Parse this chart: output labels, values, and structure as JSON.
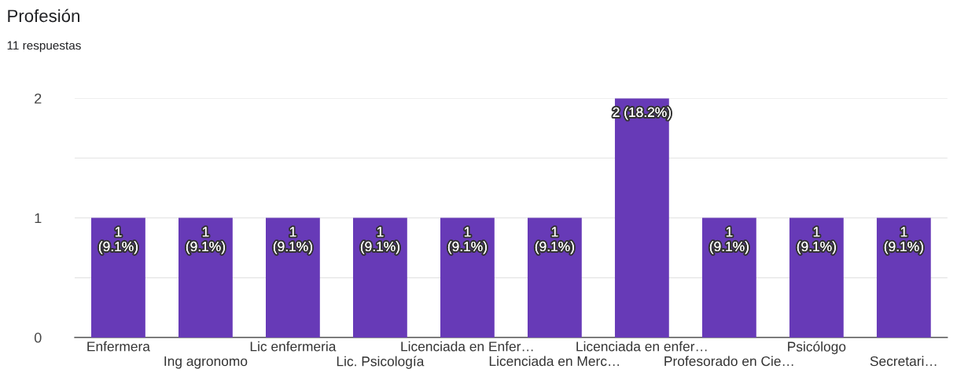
{
  "chart_data": {
    "type": "bar",
    "title": "Profesión",
    "subtitle": "11 respuestas",
    "categories": [
      "Enfermera",
      "Ing agronomo",
      "Lic enfermeria",
      "Lic. Psicología",
      "Licenciada en Enfer…",
      "Licenciada en Merc…",
      "Licenciada en enfer…",
      "Profesorado en Cie…",
      "Psicólogo",
      "Secretari…"
    ],
    "values": [
      1,
      1,
      1,
      1,
      1,
      1,
      2,
      1,
      1,
      1
    ],
    "value_labels": [
      "1\n(9.1%)",
      "1\n(9.1%)",
      "1\n(9.1%)",
      "1\n(9.1%)",
      "1\n(9.1%)",
      "1\n(9.1%)",
      "2 (18.2%)",
      "1\n(9.1%)",
      "1\n(9.1%)",
      "1\n(9.1%)"
    ],
    "color": "#673ab7",
    "ylim": [
      0,
      2
    ],
    "yticks": [
      0,
      {
        "value": 0.5,
        "label": null
      },
      1,
      {
        "value": 1.5,
        "label": null
      },
      2
    ],
    "grid": "y"
  }
}
